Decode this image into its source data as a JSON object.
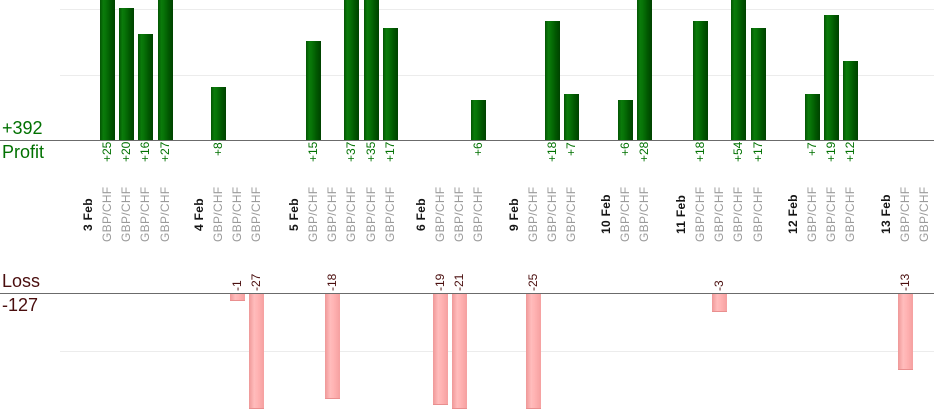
{
  "chart_data": {
    "type": "bar",
    "instrument": "GBP/CHF",
    "profit_section": {
      "label": "Profit",
      "total": "+392",
      "bar_color": "#066a06",
      "text_color": "#017101",
      "gridline_values": [
        10,
        20
      ],
      "visible_value_range": [
        0,
        21
      ],
      "note": "bars taller than visible range are clipped at top edge"
    },
    "loss_section": {
      "label": "Loss",
      "total": "-127",
      "bar_color": "#ffb3b3",
      "text_color": "#4a0e0e",
      "gridline_values": [
        -10
      ],
      "visible_value_range": [
        -20,
        0
      ],
      "note": "bars deeper than visible range are clipped at bottom edge"
    },
    "grid_color": "#ececec",
    "axis_color": "#6b6b6b",
    "groups": [
      {
        "date": "3 Feb",
        "trades": [
          {
            "symbol": "GBP/CHF",
            "value": 25,
            "label": "+25"
          },
          {
            "symbol": "GBP/CHF",
            "value": 20,
            "label": "+20"
          },
          {
            "symbol": "GBP/CHF",
            "value": 16,
            "label": "+16"
          },
          {
            "symbol": "GBP/CHF",
            "value": 27,
            "label": "+27"
          }
        ]
      },
      {
        "date": "4 Feb",
        "trades": [
          {
            "symbol": "GBP/CHF",
            "value": 8,
            "label": "+8"
          },
          {
            "symbol": "GBP/CHF",
            "value": -1,
            "label": "-1"
          },
          {
            "symbol": "GBP/CHF",
            "value": -27,
            "label": "-27"
          }
        ]
      },
      {
        "date": "5 Feb",
        "trades": [
          {
            "symbol": "GBP/CHF",
            "value": 15,
            "label": "+15"
          },
          {
            "symbol": "GBP/CHF",
            "value": -18,
            "label": "-18"
          },
          {
            "symbol": "GBP/CHF",
            "value": 37,
            "label": "+37"
          },
          {
            "symbol": "GBP/CHF",
            "value": 35,
            "label": "+35"
          },
          {
            "symbol": "GBP/CHF",
            "value": 17,
            "label": "+17"
          }
        ]
      },
      {
        "date": "6 Feb",
        "trades": [
          {
            "symbol": "GBP/CHF",
            "value": -19,
            "label": "-19"
          },
          {
            "symbol": "GBP/CHF",
            "value": -21,
            "label": "-21"
          },
          {
            "symbol": "GBP/CHF",
            "value": 6,
            "label": "+6"
          }
        ]
      },
      {
        "date": "9 Feb",
        "trades": [
          {
            "symbol": "GBP/CHF",
            "value": -25,
            "label": "-25"
          },
          {
            "symbol": "GBP/CHF",
            "value": 18,
            "label": "+18"
          },
          {
            "symbol": "GBP/CHF",
            "value": 7,
            "label": "+7"
          }
        ]
      },
      {
        "date": "10 Feb",
        "trades": [
          {
            "symbol": "GBP/CHF",
            "value": 6,
            "label": "+6"
          },
          {
            "symbol": "GBP/CHF",
            "value": 28,
            "label": "+28"
          }
        ]
      },
      {
        "date": "11 Feb",
        "trades": [
          {
            "symbol": "GBP/CHF",
            "value": 18,
            "label": "+18"
          },
          {
            "symbol": "GBP/CHF",
            "value": -3,
            "label": "-3"
          },
          {
            "symbol": "GBP/CHF",
            "value": 54,
            "label": "+54"
          },
          {
            "symbol": "GBP/CHF",
            "value": 17,
            "label": "+17"
          }
        ]
      },
      {
        "date": "12 Feb",
        "trades": [
          {
            "symbol": "GBP/CHF",
            "value": 7,
            "label": "+7"
          },
          {
            "symbol": "GBP/CHF",
            "value": 19,
            "label": "+19"
          },
          {
            "symbol": "GBP/CHF",
            "value": 12,
            "label": "+12"
          }
        ]
      },
      {
        "date": "13 Feb",
        "trades": [
          {
            "symbol": "GBP/CHF",
            "value": -13,
            "label": "-13"
          },
          {
            "symbol": "GBP/CHF",
            "value": null,
            "label": ""
          }
        ]
      }
    ]
  }
}
